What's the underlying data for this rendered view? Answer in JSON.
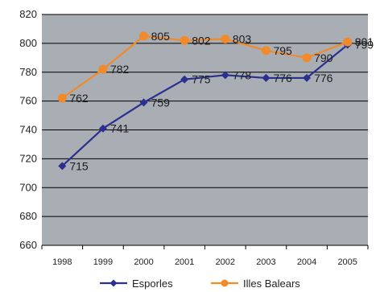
{
  "chart_data": {
    "type": "line",
    "title": "",
    "xlabel": "",
    "ylabel": "",
    "categories": [
      "1998",
      "1999",
      "2000",
      "2001",
      "2002",
      "2003",
      "2004",
      "2005"
    ],
    "ylim": [
      660,
      820
    ],
    "yticks": [
      660,
      680,
      700,
      720,
      740,
      760,
      780,
      800,
      820
    ],
    "grid": true,
    "legend": "bottom",
    "background": "#a9adb4",
    "series": [
      {
        "name": "Esporles",
        "color": "#2b2f8f",
        "marker": "diamond",
        "values": [
          715,
          741,
          759,
          775,
          778,
          776,
          776,
          799
        ],
        "labels": [
          "715",
          "741",
          "759",
          "775",
          "778",
          "776",
          "776",
          "799"
        ]
      },
      {
        "name": "Illes Balears",
        "color": "#f28a2a",
        "marker": "circle",
        "values": [
          762,
          782,
          805,
          802,
          803,
          795,
          790,
          801
        ],
        "labels": [
          "762",
          "782",
          "805",
          "802",
          "803",
          "795",
          "790",
          "801"
        ]
      }
    ]
  }
}
